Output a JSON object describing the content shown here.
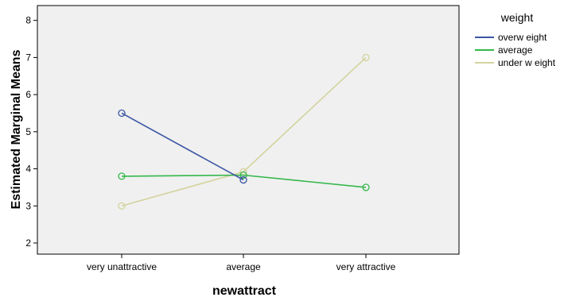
{
  "chart_data": {
    "type": "line",
    "xlabel": "newattract",
    "ylabel": "Estimated Marginal Means",
    "categories": [
      "very unattractive",
      "average",
      "very attractive"
    ],
    "ylim": [
      1.7,
      8.4
    ],
    "yticks": [
      2,
      3,
      4,
      5,
      6,
      7,
      8
    ],
    "grid": false,
    "legend": {
      "title": "weight",
      "position": "right"
    },
    "series": [
      {
        "name": "overw eight",
        "color": "#3a55a4",
        "values": [
          5.5,
          3.7,
          null
        ]
      },
      {
        "name": "average",
        "color": "#33b84a",
        "values": [
          3.8,
          3.83,
          3.5
        ]
      },
      {
        "name": "under w eight",
        "color": "#d3d39e",
        "values": [
          3.0,
          3.92,
          7.0
        ]
      }
    ]
  }
}
